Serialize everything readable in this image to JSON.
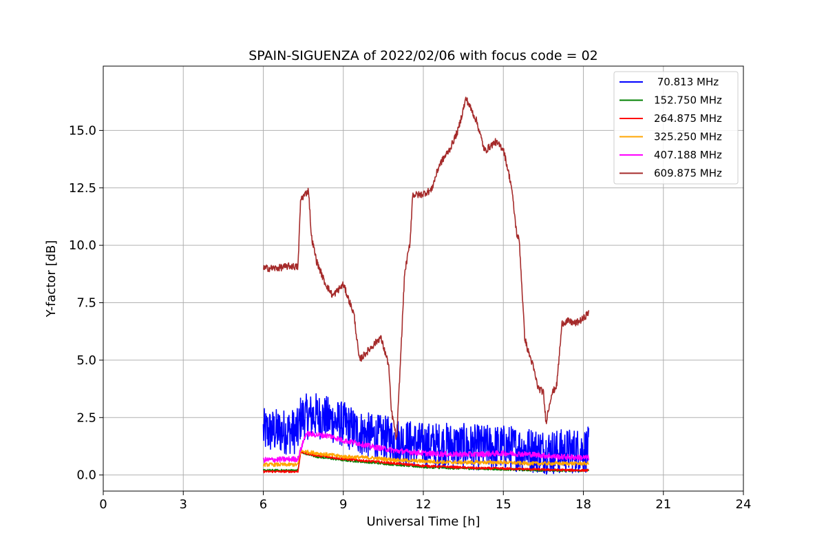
{
  "chart_data": {
    "type": "line",
    "title": "SPAIN-SIGUENZA of 2022/02/06 with focus code = 02",
    "xlabel": "Universal Time [h]",
    "ylabel": "Y-factor [dB]",
    "xlim": [
      0,
      24
    ],
    "ylim": [
      -0.7,
      17.8
    ],
    "xticks": [
      0,
      3,
      6,
      9,
      12,
      15,
      18,
      21,
      24
    ],
    "xtick_labels": [
      "0",
      "3",
      "6",
      "9",
      "12",
      "15",
      "18",
      "21",
      "24"
    ],
    "yticks": [
      0.0,
      2.5,
      5.0,
      7.5,
      10.0,
      12.5,
      15.0
    ],
    "ytick_labels": [
      "0.0",
      "2.5",
      "5.0",
      "7.5",
      "10.0",
      "12.5",
      "15.0"
    ],
    "grid": true,
    "legend_position": "top-right",
    "series": [
      {
        "name": " 70.813 MHz",
        "color": "#0000ff",
        "noise": 1.0,
        "x": [
          6.0,
          7.3,
          7.4,
          8.0,
          8.5,
          9.0,
          9.5,
          10.0,
          10.5,
          11.0,
          11.5,
          12.0,
          13.0,
          14.0,
          15.0,
          16.0,
          17.0,
          18.2
        ],
        "y": [
          1.9,
          1.9,
          2.5,
          2.6,
          2.4,
          2.2,
          1.9,
          1.7,
          1.6,
          1.5,
          1.4,
          1.3,
          1.3,
          1.2,
          1.2,
          1.1,
          1.0,
          1.1
        ]
      },
      {
        "name": "152.750 MHz",
        "color": "#008000",
        "noise": 0.05,
        "x": [
          6.0,
          7.3,
          7.4,
          8.0,
          9.0,
          10.0,
          11.0,
          12.0,
          13.0,
          14.0,
          15.0,
          16.0,
          17.0,
          18.2
        ],
        "y": [
          0.2,
          0.2,
          1.0,
          0.8,
          0.65,
          0.55,
          0.45,
          0.35,
          0.3,
          0.28,
          0.25,
          0.22,
          0.2,
          0.2
        ]
      },
      {
        "name": "264.875 MHz",
        "color": "#ff0000",
        "noise": 0.05,
        "x": [
          6.0,
          7.3,
          7.4,
          8.0,
          9.0,
          10.0,
          11.0,
          12.0,
          13.0,
          14.0,
          15.0,
          16.0,
          17.0,
          18.2
        ],
        "y": [
          0.15,
          0.15,
          1.0,
          0.85,
          0.7,
          0.6,
          0.5,
          0.4,
          0.35,
          0.3,
          0.28,
          0.25,
          0.22,
          0.2
        ]
      },
      {
        "name": "325.250 MHz",
        "color": "#ffa500",
        "noise": 0.08,
        "x": [
          6.0,
          7.3,
          7.4,
          8.0,
          9.0,
          10.0,
          11.0,
          12.0,
          13.0,
          14.0,
          15.0,
          16.0,
          17.0,
          18.2
        ],
        "y": [
          0.45,
          0.45,
          1.05,
          0.95,
          0.8,
          0.75,
          0.65,
          0.6,
          0.55,
          0.55,
          0.55,
          0.5,
          0.5,
          0.5
        ]
      },
      {
        "name": "407.188 MHz",
        "color": "#ff00ff",
        "noise": 0.12,
        "x": [
          6.0,
          7.3,
          7.4,
          7.6,
          8.0,
          8.5,
          9.0,
          9.5,
          10.0,
          11.0,
          12.0,
          13.0,
          14.0,
          15.0,
          16.0,
          17.0,
          18.2
        ],
        "y": [
          0.65,
          0.7,
          1.1,
          1.8,
          1.75,
          1.7,
          1.5,
          1.4,
          1.25,
          1.05,
          0.95,
          0.9,
          0.9,
          0.95,
          0.9,
          0.8,
          0.75
        ]
      },
      {
        "name": "609.875 MHz",
        "color": "#a52a2a",
        "noise": 0.15,
        "x": [
          6.0,
          6.5,
          7.0,
          7.3,
          7.4,
          7.7,
          7.8,
          8.0,
          8.3,
          8.6,
          9.0,
          9.4,
          9.6,
          10.0,
          10.4,
          10.7,
          10.8,
          10.9,
          11.0,
          11.3,
          11.5,
          11.6,
          11.9,
          12.3,
          12.6,
          13.0,
          13.3,
          13.6,
          14.0,
          14.3,
          14.7,
          15.0,
          15.3,
          15.5,
          15.6,
          15.8,
          15.9,
          16.1,
          16.3,
          16.5,
          16.6,
          16.8,
          17.0,
          17.2,
          17.4,
          17.7,
          18.0,
          18.2
        ],
        "y": [
          9.0,
          9.0,
          9.1,
          9.05,
          12.0,
          12.4,
          10.4,
          9.3,
          8.4,
          7.8,
          8.3,
          7.0,
          5.0,
          5.5,
          6.0,
          4.8,
          2.8,
          2.2,
          1.5,
          8.8,
          10.1,
          12.2,
          12.2,
          12.4,
          13.5,
          14.2,
          15.0,
          16.4,
          15.4,
          14.1,
          14.5,
          14.2,
          12.6,
          10.5,
          10.2,
          6.0,
          5.5,
          4.8,
          3.8,
          3.6,
          2.3,
          3.5,
          3.9,
          6.6,
          6.7,
          6.6,
          6.8,
          7.1
        ]
      }
    ]
  }
}
